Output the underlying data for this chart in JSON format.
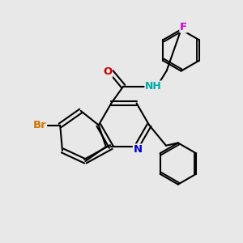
{
  "bg_color": "#e8e8e8",
  "bond_color": "#000000",
  "bond_width": 1.5,
  "atom_colors": {
    "N_quinoline": "#0000cc",
    "N_amide": "#00aaaa",
    "O": "#cc0000",
    "Br": "#cc7700",
    "F": "#cc00cc",
    "C": "#000000",
    "H": "#000000"
  },
  "figsize": [
    3.0,
    3.0
  ],
  "dpi": 100
}
